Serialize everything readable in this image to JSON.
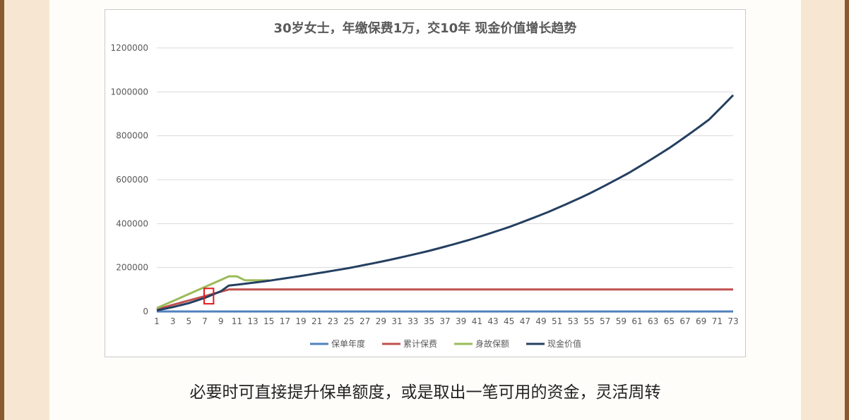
{
  "caption": "必要时可直接提升保单额度，或是取出一笔可用的资金，灵活周转",
  "chart_data": {
    "type": "line",
    "title": "30岁女士，年缴保费1万，交10年 现金价值增长趋势",
    "xlabel": "",
    "ylabel": "",
    "x_ticks": [
      1,
      3,
      5,
      7,
      9,
      11,
      13,
      15,
      17,
      19,
      21,
      23,
      25,
      27,
      29,
      31,
      33,
      35,
      37,
      39,
      41,
      43,
      45,
      47,
      49,
      51,
      53,
      55,
      57,
      59,
      61,
      63,
      65,
      67,
      69,
      71,
      73
    ],
    "y_ticks": [
      0,
      200000,
      400000,
      600000,
      800000,
      1000000,
      1200000
    ],
    "xlim": [
      1,
      73
    ],
    "ylim": [
      0,
      1200000
    ],
    "grid": true,
    "legend": "bottom",
    "highlight_box": {
      "x_range": [
        7,
        8
      ],
      "y_range": [
        35000,
        105000
      ],
      "color": "#e31a1c"
    },
    "series": [
      {
        "name": "保单年度",
        "color": "#4f81bd",
        "rule": "policy_year",
        "start": 1,
        "end": 73
      },
      {
        "name": "累计保费",
        "color": "#c0504d",
        "rule": "cumulative_premium",
        "annual": 10000,
        "years": 10,
        "start": 1,
        "end": 73
      },
      {
        "name": "身故保额",
        "color": "#9bbb59",
        "start": 1,
        "end": 15,
        "points": [
          [
            1,
            15000
          ],
          [
            10,
            160000
          ],
          [
            11,
            160000
          ],
          [
            12,
            142000
          ],
          [
            15,
            142000
          ]
        ]
      },
      {
        "name": "现金价值",
        "color": "#243f60",
        "rule": "cash_value",
        "start": 1,
        "end": 73,
        "points": [
          [
            1,
            5000
          ],
          [
            3,
            20000
          ],
          [
            5,
            38000
          ],
          [
            7,
            62000
          ],
          [
            9,
            92000
          ],
          [
            10,
            118000
          ],
          [
            11,
            122000
          ],
          [
            15,
            140000
          ],
          [
            20,
            170000
          ],
          [
            25,
            200000
          ],
          [
            30,
            237000
          ],
          [
            35,
            278000
          ],
          [
            40,
            327000
          ],
          [
            45,
            385000
          ],
          [
            50,
            455000
          ],
          [
            55,
            535000
          ],
          [
            60,
            628000
          ],
          [
            65,
            735000
          ],
          [
            70,
            858000
          ],
          [
            73,
            985000
          ]
        ]
      }
    ]
  }
}
